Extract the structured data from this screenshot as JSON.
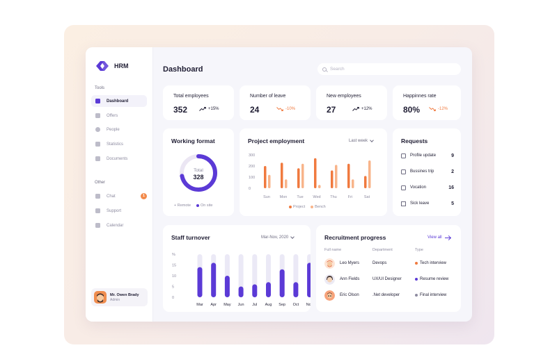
{
  "app": {
    "name": "HRM"
  },
  "sidebar": {
    "tools_label": "Tools",
    "tools": [
      {
        "label": "Dashboard",
        "icon": "dashboard-icon",
        "active": true
      },
      {
        "label": "Offers",
        "icon": "briefcase-icon"
      },
      {
        "label": "People",
        "icon": "person-icon"
      },
      {
        "label": "Statistics",
        "icon": "bar-chart-icon"
      },
      {
        "label": "Documents",
        "icon": "document-icon"
      }
    ],
    "other_label": "Other",
    "other": [
      {
        "label": "Chat",
        "icon": "chat-icon",
        "badge": "1"
      },
      {
        "label": "Support",
        "icon": "support-icon"
      },
      {
        "label": "Calendar",
        "icon": "calendar-icon"
      }
    ],
    "user": {
      "name": "Mr. Owen Brady",
      "role": "Admin"
    }
  },
  "header": {
    "title": "Dashboard",
    "search_placeholder": "Search"
  },
  "stats": [
    {
      "label": "Total employees",
      "value": "352",
      "trend": "+15%",
      "direction": "up"
    },
    {
      "label": "Number of leave",
      "value": "24",
      "trend": "-10%",
      "direction": "down"
    },
    {
      "label": "New employees",
      "value": "27",
      "trend": "+12%",
      "direction": "up"
    },
    {
      "label": "Happinnes rate",
      "value": "80%",
      "trend": "-12%",
      "direction": "down"
    }
  ],
  "working_format": {
    "title": "Working format",
    "center_label": "Total",
    "total": "328",
    "legend": [
      "Remote",
      "On site"
    ],
    "onsite_fraction": 0.72
  },
  "project_employment": {
    "title": "Project employment",
    "period": "Last week",
    "legend": [
      "Project",
      "Bench"
    ]
  },
  "requests": {
    "title": "Requests",
    "items": [
      {
        "label": "Profile update",
        "value": "9",
        "icon": "profile-card-icon"
      },
      {
        "label": "Bussines trip",
        "value": "2",
        "icon": "suitcase-icon"
      },
      {
        "label": "Vocation",
        "value": "16",
        "icon": "luggage-icon"
      },
      {
        "label": "Sick leave",
        "value": "5",
        "icon": "house-icon"
      }
    ]
  },
  "staff_turnover": {
    "title": "Staff turnover",
    "period": "Mar-Nov, 2020"
  },
  "recruitment": {
    "title": "Recruitment progress",
    "view_all": "View all",
    "headers": [
      "Full name",
      "Department",
      "Type"
    ],
    "rows": [
      {
        "name": "Leo Myers",
        "department": "Devops",
        "type": "Tech interview",
        "type_color": "#f07a3f"
      },
      {
        "name": "Ann Fields",
        "department": "UX/UI Designer",
        "type": "Resume review",
        "type_color": "#5b3ad6"
      },
      {
        "name": "Eric Olson",
        "department": ".Net developer",
        "type": "Final interview",
        "type_color": "#8d8ba0"
      }
    ]
  },
  "colors": {
    "accent": "#5b3ad6",
    "orange": "#f07a3f",
    "peach": "#f8b48a",
    "track": "#ebe9f6"
  },
  "chart_data": [
    {
      "type": "bar",
      "title": "Project employment",
      "categories": [
        "Sun",
        "Mon",
        "Tue",
        "Wed",
        "Thu",
        "Fri",
        "Sat"
      ],
      "series": [
        {
          "name": "Project",
          "values": [
            200,
            230,
            180,
            270,
            160,
            220,
            110
          ]
        },
        {
          "name": "Bench",
          "values": [
            120,
            80,
            220,
            30,
            210,
            80,
            250
          ]
        }
      ],
      "yticks": [
        "300",
        "200",
        "100",
        "0"
      ],
      "ylim": [
        0,
        300
      ]
    },
    {
      "type": "bar",
      "title": "Staff turnover",
      "categories": [
        "Mar",
        "Apr",
        "May",
        "Jun",
        "Jul",
        "Aug",
        "Sep",
        "Oct",
        "Nov"
      ],
      "series": [
        {
          "values": [
            14,
            16,
            10,
            5,
            6,
            7,
            13,
            7,
            16
          ]
        }
      ],
      "max": 20,
      "yticks": [
        "%",
        "15",
        "10",
        "5",
        "0"
      ]
    }
  ]
}
